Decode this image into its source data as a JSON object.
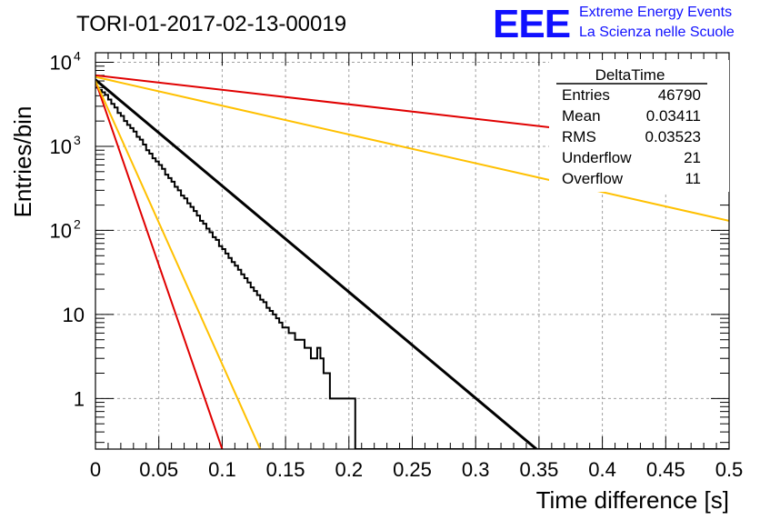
{
  "header": {
    "title": "TORI-01-2017-02-13-00019",
    "logo_text": "EEE",
    "logo_line1": "Extreme Energy Events",
    "logo_line2": "La Scienza nelle Scuole"
  },
  "stats": {
    "name": "DeltaTime",
    "rows": [
      {
        "label": "Entries",
        "value": "46790"
      },
      {
        "label": "Mean",
        "value": "0.03411"
      },
      {
        "label": "RMS",
        "value": "0.03523"
      },
      {
        "label": "Underflow",
        "value": "21"
      },
      {
        "label": "Overflow",
        "value": "11"
      }
    ]
  },
  "colors": {
    "histogram": "#000000",
    "fit": "#000000",
    "red": "#e00000",
    "orange": "#ffc000",
    "grid": "#a0a0a0",
    "logo_blue": "#1010ff"
  },
  "chart_data": {
    "type": "line",
    "title": "TORI-01-2017-02-13-00019",
    "xlabel": "Time difference [s]",
    "ylabel": "Entries/bin",
    "xlim": [
      0,
      0.5
    ],
    "ylim": [
      0.25,
      13000
    ],
    "y_scale": "log",
    "grid": true,
    "x_ticks": [
      "0",
      "0.05",
      "0.1",
      "0.15",
      "0.2",
      "0.25",
      "0.3",
      "0.35",
      "0.4",
      "0.45",
      "0.5"
    ],
    "y_ticks": [
      {
        "value": 10000,
        "base": "10",
        "exp": "4"
      },
      {
        "value": 1000,
        "base": "10",
        "exp": "3"
      },
      {
        "value": 100,
        "base": "10",
        "exp": "2"
      },
      {
        "value": 10,
        "base": "10",
        "exp": ""
      },
      {
        "value": 1,
        "base": "1",
        "exp": ""
      }
    ],
    "histogram": {
      "bin_width": 0.0025,
      "x_start": 0,
      "counts": [
        5000,
        4700,
        4400,
        4100,
        3600,
        3200,
        2900,
        2500,
        2300,
        2000,
        1800,
        1650,
        1500,
        1300,
        1200,
        1050,
        900,
        820,
        720,
        660,
        600,
        540,
        460,
        420,
        380,
        330,
        300,
        260,
        240,
        210,
        190,
        170,
        150,
        130,
        120,
        105,
        95,
        83,
        77,
        65,
        60,
        53,
        47,
        42,
        38,
        34,
        30,
        27,
        24,
        21,
        19,
        17,
        15,
        14,
        12,
        11,
        10,
        9,
        8,
        7,
        7,
        6,
        6,
        5,
        5,
        5,
        4,
        4,
        3,
        3,
        4,
        3,
        2,
        2,
        1,
        1,
        1,
        1,
        1,
        1,
        1,
        1,
        0.25,
        0.25,
        0.25,
        0.25,
        0.25,
        0.25,
        0.25,
        0.25,
        0.25,
        0.25,
        0.25,
        0.25,
        0.25,
        0.25,
        0.25,
        0.25,
        0.25,
        0.25,
        0.25,
        0.25,
        0.25,
        0.25,
        0.25,
        0.25,
        0.25,
        0.25,
        0.25,
        0.25,
        0.25,
        0.25,
        0.25,
        0.25,
        0.25,
        0.25,
        0.25,
        0.25,
        0.25,
        0.25,
        0.25,
        0.25,
        0.25,
        0.25,
        0.25,
        0.25,
        0.25,
        0.25,
        0.25,
        0.25,
        0.25,
        0.25,
        0.25,
        0.25,
        0.25,
        0.25,
        0.25,
        0.25,
        0.25,
        0.25,
        0.25,
        0.25,
        0.25,
        0.25,
        0.25,
        0.25,
        0.25,
        0.25,
        0.25,
        0.25,
        0.25,
        0.25,
        0.25,
        0.25,
        0.25,
        0.25,
        0.25,
        0.25,
        0.25,
        0.25,
        0.25,
        0.25,
        0.25,
        0.25,
        0.25,
        0.25,
        0.25,
        0.25,
        0.25,
        0.25,
        0.25,
        0.25,
        0.25,
        0.25,
        0.25,
        0.25,
        0.25,
        0.25,
        0.25,
        0.25,
        0.25,
        0.25,
        0.25,
        0.25,
        0.25,
        0.25,
        0.25,
        0.25,
        0.25,
        0.25,
        0.25,
        0.25,
        0.25,
        0.25,
        0.25,
        0.25,
        0.25,
        0.25,
        0.25,
        0.25
      ]
    },
    "series": [
      {
        "color": "#000000",
        "points": [
          [
            0,
            6200
          ],
          [
            0.348,
            0.25
          ]
        ]
      },
      {
        "color": "#e00000",
        "points": [
          [
            0,
            7000
          ],
          [
            0.5,
            960
          ]
        ]
      },
      {
        "color": "#ffc000",
        "points": [
          [
            0,
            6700
          ],
          [
            0.5,
            130
          ]
        ]
      },
      {
        "color": "#e00000",
        "points": [
          [
            0,
            6000
          ],
          [
            0.1,
            0.25
          ]
        ]
      },
      {
        "color": "#ffc000",
        "points": [
          [
            0,
            6000
          ],
          [
            0.13,
            0.25
          ]
        ]
      }
    ]
  }
}
